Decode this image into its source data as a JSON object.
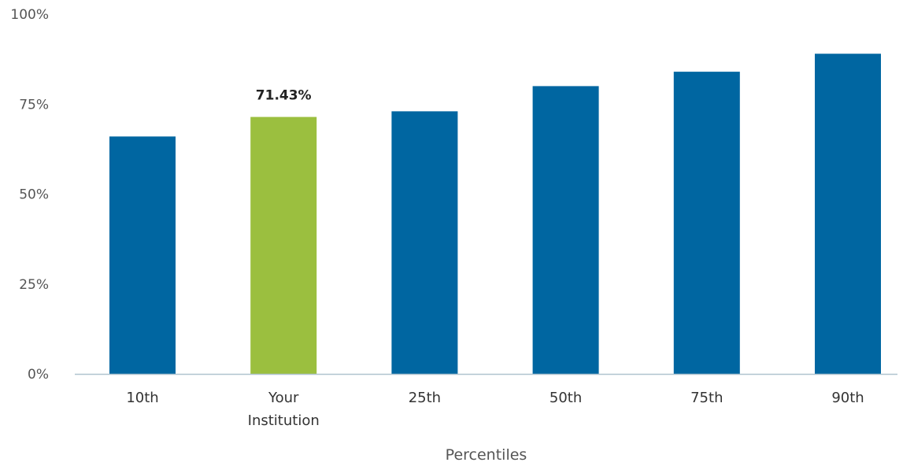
{
  "chart_data": {
    "type": "bar",
    "categories": [
      "10th",
      "Your Institution",
      "25th",
      "50th",
      "75th",
      "90th"
    ],
    "values": [
      66,
      71.43,
      73,
      80,
      84,
      89
    ],
    "ylim": [
      0,
      100
    ],
    "yticks": [
      "0%",
      "25%",
      "50%",
      "75%",
      "100%"
    ],
    "ytick_values": [
      0,
      25,
      50,
      75,
      100
    ],
    "xlabel": "Percentiles",
    "ylabel": "",
    "grid": false,
    "highlight_index": 1,
    "data_labels": {
      "1": "71.43%"
    },
    "colors": {
      "default": "#0066a1",
      "highlight": "#9bbf3f",
      "axis": "#b0c4cf"
    }
  }
}
